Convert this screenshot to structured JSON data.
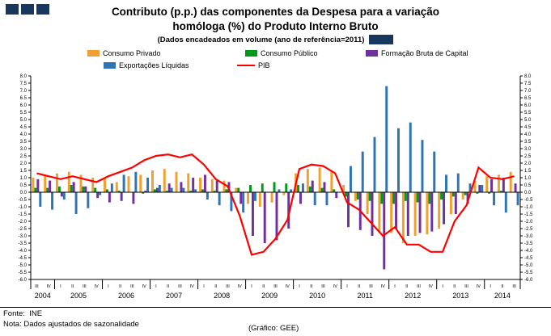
{
  "brand": {
    "navy": "#17375E"
  },
  "header": {
    "title_line1": "Contributo (p.p.) das componentes da Despesa para a variação",
    "title_line2": "homóloga (%) do Produto Interno Bruto",
    "subtitle": "(Dados encadeados em volume (ano de referência=2011)"
  },
  "footer": {
    "fonte": "Fonte:  INE",
    "nota": "Nota: Dados ajustados de sazonalidade",
    "grafico": "(Gráfico: GEE)"
  },
  "chart_data": {
    "type": "bar",
    "title": "Contributo (p.p.) das componentes da Despesa para a variação homóloga (%) do Produto Interno Bruto",
    "subtitle": "(Dados encadeados em volume (ano de referência=2011)",
    "xlabel": "",
    "ylabel": "",
    "ylim": [
      -6,
      8
    ],
    "ytick_step": 0.5,
    "grid": false,
    "legend_position": "top",
    "years": [
      {
        "label": "2004",
        "quarters": [
          "III",
          "IV"
        ]
      },
      {
        "label": "2005",
        "quarters": [
          "I",
          "II",
          "III",
          "IV"
        ]
      },
      {
        "label": "2006",
        "quarters": [
          "I",
          "II",
          "III",
          "IV"
        ]
      },
      {
        "label": "2007",
        "quarters": [
          "I",
          "II",
          "III",
          "IV"
        ]
      },
      {
        "label": "2008",
        "quarters": [
          "I",
          "II",
          "III",
          "IV"
        ]
      },
      {
        "label": "2009",
        "quarters": [
          "I",
          "II",
          "III",
          "IV"
        ]
      },
      {
        "label": "2010",
        "quarters": [
          "I",
          "II",
          "III",
          "IV"
        ]
      },
      {
        "label": "2011",
        "quarters": [
          "I",
          "II",
          "III",
          "IV"
        ]
      },
      {
        "label": "2012",
        "quarters": [
          "I",
          "II",
          "III",
          "IV"
        ]
      },
      {
        "label": "2013",
        "quarters": [
          "I",
          "II",
          "III",
          "IV"
        ]
      },
      {
        "label": "2014",
        "quarters": [
          "I",
          "II",
          "III"
        ]
      }
    ],
    "series": [
      {
        "name": "Consumo Privado",
        "color": "#F0A030",
        "values": [
          1.0,
          1.2,
          1.3,
          1.4,
          1.2,
          1.0,
          1.0,
          0.7,
          1.1,
          1.2,
          1.5,
          1.6,
          1.4,
          1.3,
          1.0,
          0.9,
          0.8,
          0.3,
          -0.8,
          -1.0,
          -0.7,
          -0.2,
          1.3,
          1.6,
          1.7,
          1.5,
          0.5,
          -0.6,
          -1.5,
          -2.8,
          -2.8,
          -3.5,
          -3.0,
          -2.9,
          -2.5,
          -1.5,
          -0.5,
          0.8,
          1.1,
          1.2,
          1.4
        ]
      },
      {
        "name": "Consumo Público",
        "color": "#009A1A",
        "values": [
          0.3,
          0.3,
          0.4,
          0.5,
          0.4,
          0.3,
          0.2,
          0.1,
          0.0,
          -0.1,
          0.2,
          0.1,
          0.0,
          0.1,
          0.2,
          0.1,
          0.2,
          0.3,
          0.5,
          0.6,
          0.7,
          0.6,
          0.5,
          0.4,
          0.3,
          0.2,
          -0.3,
          -0.5,
          -0.6,
          -0.8,
          -0.8,
          -0.6,
          -0.7,
          -0.8,
          -0.5,
          -0.3,
          -0.2,
          -0.1,
          -0.1,
          0.1,
          0.0
        ]
      },
      {
        "name": "Formação Bruta de Capital",
        "color": "#7030A0",
        "values": [
          0.9,
          0.8,
          -0.3,
          0.7,
          0.4,
          -0.4,
          -0.7,
          -0.6,
          -0.8,
          0.1,
          0.3,
          0.6,
          0.7,
          1.0,
          1.2,
          0.8,
          0.7,
          -0.8,
          -3.0,
          -3.5,
          -3.3,
          -2.5,
          -0.8,
          0.8,
          0.7,
          -0.4,
          -2.4,
          -2.6,
          -3.0,
          -5.3,
          -2.5,
          -3.0,
          -2.8,
          -2.7,
          -2.2,
          -1.5,
          -0.8,
          0.5,
          0.9,
          1.0,
          0.6
        ]
      },
      {
        "name": "Exportações Líquidas",
        "color": "#2E74B5",
        "values": [
          -1.0,
          -1.2,
          -0.5,
          -1.5,
          -1.1,
          -0.2,
          0.6,
          1.2,
          1.4,
          1.0,
          0.5,
          0.3,
          0.3,
          0.2,
          -0.5,
          -0.9,
          -1.3,
          -1.4,
          -0.6,
          0.0,
          0.2,
          0.2,
          0.6,
          -0.9,
          -0.9,
          0.0,
          1.8,
          2.8,
          3.8,
          7.3,
          4.4,
          4.8,
          3.6,
          2.8,
          1.2,
          1.3,
          0.6,
          0.5,
          -0.9,
          -1.4,
          -0.9
        ]
      }
    ],
    "line": {
      "name": "PIB",
      "color": "#FF0000",
      "values": [
        1.3,
        1.1,
        0.9,
        1.1,
        0.9,
        0.7,
        1.1,
        1.4,
        1.7,
        2.2,
        2.5,
        2.6,
        2.4,
        2.6,
        1.9,
        0.9,
        0.4,
        -1.6,
        -4.3,
        -4.1,
        -3.2,
        -1.9,
        1.6,
        1.9,
        1.8,
        1.3,
        -0.7,
        -1.2,
        -2.1,
        -3.0,
        -2.4,
        -3.6,
        -3.6,
        -4.1,
        -4.1,
        -2.0,
        -0.9,
        1.7,
        1.0,
        0.9,
        1.1
      ]
    }
  }
}
